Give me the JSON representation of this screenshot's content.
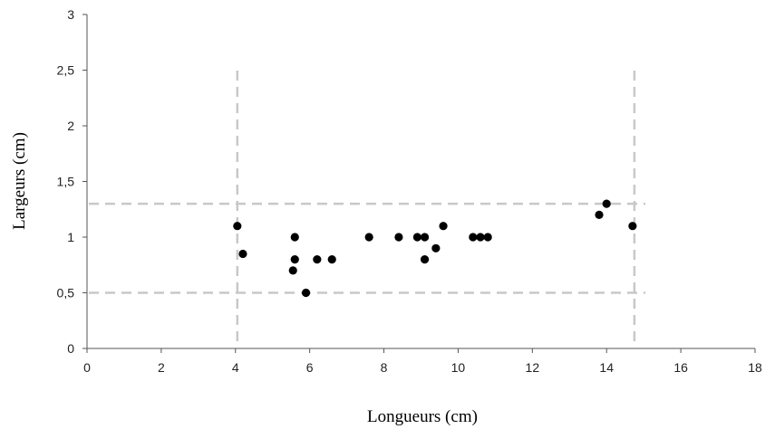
{
  "chart_data": {
    "type": "scatter",
    "title": "",
    "xlabel": "Longueurs (cm)",
    "ylabel": "Largeurs (cm)",
    "xlim": [
      0,
      18
    ],
    "ylim": [
      0,
      3
    ],
    "xticks": [
      0,
      2,
      4,
      6,
      8,
      10,
      12,
      14,
      16,
      18
    ],
    "xtick_labels": [
      "0",
      "2",
      "4",
      "6",
      "8",
      "10",
      "12",
      "14",
      "16",
      "18"
    ],
    "yticks": [
      0,
      0.5,
      1,
      1.5,
      2,
      2.5,
      3
    ],
    "ytick_labels": [
      "0",
      "0,5",
      "1",
      "1,5",
      "2",
      "2,5",
      "3"
    ],
    "grid": false,
    "legend": "none",
    "point_color": "#000000",
    "reference_lines": {
      "color": "#c8c8c8",
      "style": "dashed",
      "vertical_x": [
        4.05,
        14.75
      ],
      "horizontal_y": [
        1.3,
        0.5
      ]
    },
    "points": [
      {
        "x": 4.05,
        "y": 1.1
      },
      {
        "x": 4.2,
        "y": 0.85
      },
      {
        "x": 5.55,
        "y": 0.7
      },
      {
        "x": 5.6,
        "y": 0.8
      },
      {
        "x": 5.6,
        "y": 1.0
      },
      {
        "x": 5.9,
        "y": 0.5
      },
      {
        "x": 6.2,
        "y": 0.8
      },
      {
        "x": 6.6,
        "y": 0.8
      },
      {
        "x": 7.6,
        "y": 1.0
      },
      {
        "x": 8.4,
        "y": 1.0
      },
      {
        "x": 8.9,
        "y": 1.0
      },
      {
        "x": 9.1,
        "y": 1.0
      },
      {
        "x": 9.1,
        "y": 0.8
      },
      {
        "x": 9.4,
        "y": 0.9
      },
      {
        "x": 9.6,
        "y": 1.1
      },
      {
        "x": 10.4,
        "y": 1.0
      },
      {
        "x": 10.6,
        "y": 1.0
      },
      {
        "x": 10.8,
        "y": 1.0
      },
      {
        "x": 13.8,
        "y": 1.2
      },
      {
        "x": 14.0,
        "y": 1.3
      },
      {
        "x": 14.7,
        "y": 1.1
      }
    ]
  }
}
